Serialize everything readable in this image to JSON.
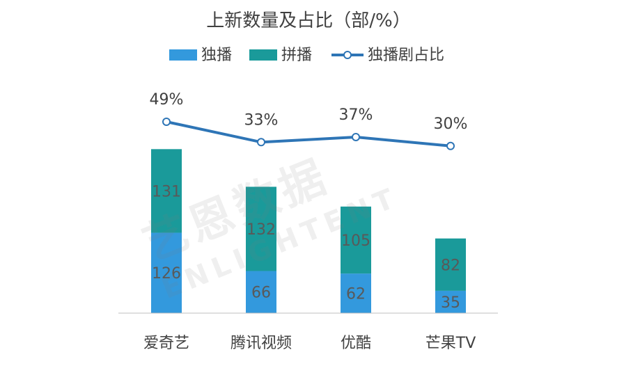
{
  "chart_data": {
    "type": "bar",
    "stacked": true,
    "title": "上新数量及占比（部/%）",
    "categories": [
      "爱奇艺",
      "腾讯视频",
      "优酷",
      "芒果TV"
    ],
    "series": [
      {
        "name": "独播",
        "kind": "bar",
        "color": "#3399dd",
        "values": [
          126,
          66,
          62,
          35
        ]
      },
      {
        "name": "拼播",
        "kind": "bar",
        "color": "#1a9a9a",
        "values": [
          131,
          132,
          105,
          82
        ]
      },
      {
        "name": "独播剧占比",
        "kind": "line",
        "color": "#2e75b6",
        "values": [
          49,
          33,
          37,
          30
        ],
        "labels": [
          "49%",
          "33%",
          "37%",
          "30%"
        ]
      }
    ],
    "legend_position": "top",
    "grid": false
  },
  "watermark": {
    "cn": "艺恩数据",
    "en": "ENLIGHTENT"
  }
}
